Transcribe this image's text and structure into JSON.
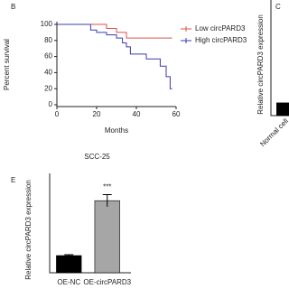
{
  "chart_data": [
    {
      "type": "line",
      "panel": "B",
      "ylabel": "Percent survival",
      "xlabel": "Months",
      "xlim": [
        0,
        60
      ],
      "ylim": [
        0,
        100
      ],
      "xticks": [
        0,
        20,
        40,
        60
      ],
      "yticks": [
        0,
        20,
        40,
        60,
        80,
        100
      ],
      "step": true,
      "series": [
        {
          "name": "Low circPARD3",
          "color": "#d9534f",
          "x": [
            0,
            25,
            30,
            35,
            58
          ],
          "values": [
            100,
            95,
            90,
            83,
            83
          ]
        },
        {
          "name": "High circPARD3",
          "color": "#3b3bb3",
          "x": [
            0,
            17,
            20,
            25,
            30,
            33,
            35,
            37,
            45,
            52,
            55,
            57,
            58
          ],
          "values": [
            100,
            93,
            90,
            87,
            83,
            77,
            72,
            63,
            57,
            48,
            35,
            20,
            20
          ]
        }
      ]
    },
    {
      "type": "bar",
      "panel": "C",
      "ylabel": "Relative circPARD3 expression",
      "categories": [
        "Normal cell"
      ],
      "values": [
        1
      ],
      "colors": [
        "#000000"
      ],
      "ylim": [
        0,
        8
      ]
    },
    {
      "type": "bar",
      "panel": "E",
      "title": "SCC-25",
      "ylabel": "Relative circPARD3 expression",
      "categories": [
        "OE-NC",
        "OE-circPARD3"
      ],
      "values": [
        1,
        4.2
      ],
      "errors": [
        0.05,
        0.35
      ],
      "colors": [
        "#000000",
        "#a6a6a6"
      ],
      "ylim": [
        0,
        5
      ],
      "annotations": [
        {
          "index": 1,
          "text": "***"
        }
      ]
    }
  ]
}
